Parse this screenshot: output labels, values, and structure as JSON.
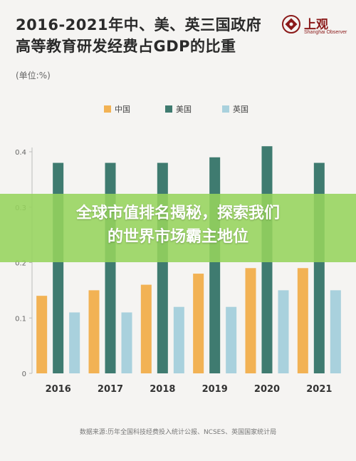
{
  "header": {
    "title_line1": "2016-2021年中、美、英三国政府",
    "title_line2": "高等教育研发经费占GDP的比重",
    "unit": "(单位:%)"
  },
  "logo": {
    "name_cn": "上观",
    "name_en": "Shanghai Observer",
    "icon": "shanghai-observer-logo",
    "color": "#8b1a1a"
  },
  "banner": {
    "line1": "全球市值排名揭秘，探索我们",
    "line2": "的世界市场霸主地位",
    "color": "#96d45c"
  },
  "source": "数据来源:历年全国科技经费投入统计公报、NCSES、英国国家统计局",
  "chart_data": {
    "type": "bar",
    "categories": [
      "2016",
      "2017",
      "2018",
      "2019",
      "2020",
      "2021"
    ],
    "series": [
      {
        "name": "中国",
        "color": "#f2b254",
        "values": [
          0.14,
          0.15,
          0.16,
          0.18,
          0.19,
          0.19
        ]
      },
      {
        "name": "美国",
        "color": "#3f7b70",
        "values": [
          0.38,
          0.38,
          0.38,
          0.39,
          0.41,
          0.38
        ]
      },
      {
        "name": "英国",
        "color": "#a9d1dd",
        "values": [
          0.11,
          0.11,
          0.12,
          0.12,
          0.15,
          0.15
        ]
      }
    ],
    "ylim": [
      0,
      0.4
    ],
    "yticks": [
      "0",
      "0.1",
      "0.2",
      "0.3",
      "0.4"
    ],
    "xlabel": "",
    "ylabel": "",
    "legend_position": "top-center",
    "grid": false
  }
}
